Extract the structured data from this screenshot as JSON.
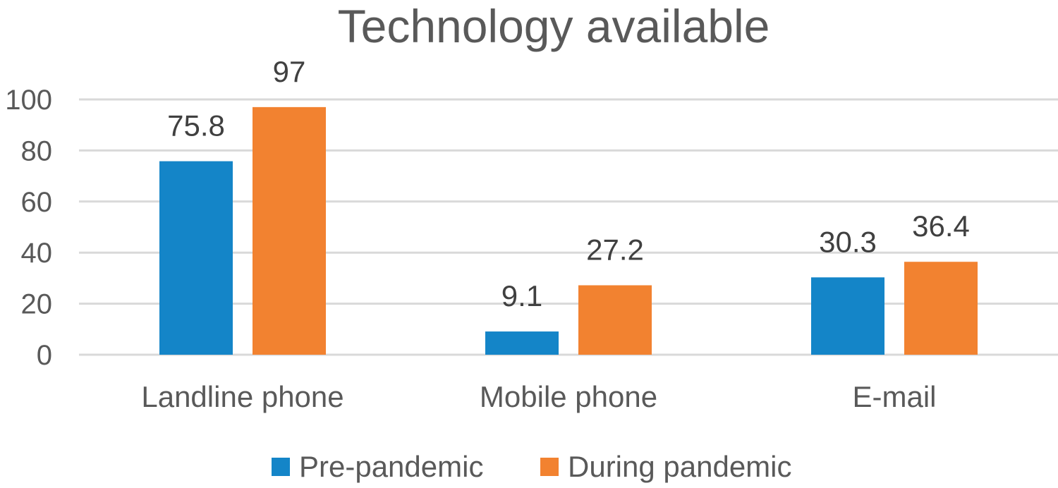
{
  "chart_data": {
    "type": "bar",
    "title": "Technology available",
    "categories": [
      "Landline phone",
      "Mobile phone",
      "E-mail"
    ],
    "series": [
      {
        "name": "Pre-pandemic",
        "color": "#1485c8",
        "values": [
          75.8,
          9.1,
          30.3
        ]
      },
      {
        "name": "During pandemic",
        "color": "#f28230",
        "values": [
          97,
          27.2,
          36.4
        ]
      }
    ],
    "y_ticks": [
      "0",
      "20",
      "40",
      "60",
      "80",
      "100"
    ],
    "data_labels": [
      [
        "75.8",
        "9.1",
        "30.3"
      ],
      [
        "97",
        "27.2",
        "36.4"
      ]
    ],
    "ylim": [
      0,
      100
    ],
    "grid": true,
    "legend_position": "bottom"
  }
}
